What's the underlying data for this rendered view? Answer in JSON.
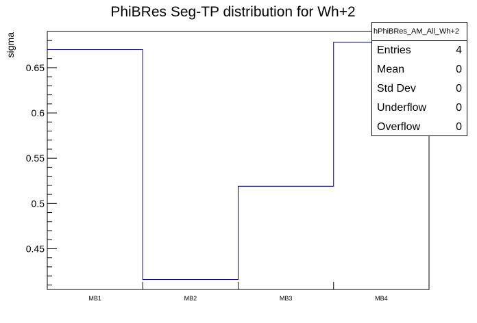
{
  "chart_data": {
    "type": "step",
    "title": "PhiBRes Seg-TP distribution for Wh+2",
    "xlabel": "",
    "ylabel": "sigma",
    "categories": [
      "MB1",
      "MB2",
      "MB3",
      "MB4"
    ],
    "values": [
      0.67,
      0.416,
      0.519,
      0.678
    ],
    "ylim": [
      0.405,
      0.69
    ],
    "yticks": [
      "0.45",
      "0.5",
      "0.55",
      "0.6",
      "0.65"
    ],
    "line_color": "#000080",
    "grid": false
  },
  "stats": {
    "name": "hPhiBRes_AM_All_Wh+2",
    "rows": [
      {
        "label": "Entries",
        "value": "4"
      },
      {
        "label": "Mean",
        "value": "0"
      },
      {
        "label": "Std Dev",
        "value": "0"
      },
      {
        "label": "Underflow",
        "value": "0"
      },
      {
        "label": "Overflow",
        "value": "0"
      }
    ]
  }
}
